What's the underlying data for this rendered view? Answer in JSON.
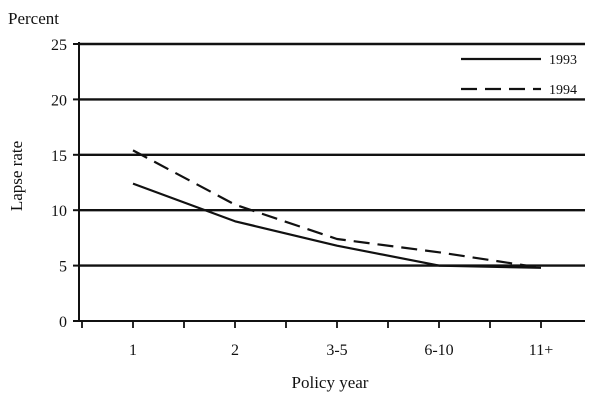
{
  "chart_data": {
    "type": "line",
    "unit_label": "Percent",
    "ylabel": "Lapse rate",
    "xlabel": "Policy year",
    "categories": [
      "1",
      "2",
      "3-5",
      "6-10",
      "11+"
    ],
    "ylim": [
      0,
      25
    ],
    "yticks": [
      0,
      5,
      10,
      15,
      20,
      25
    ],
    "grid": true,
    "legend": "top-right",
    "series": [
      {
        "name": "1993",
        "values": [
          12.4,
          9.0,
          6.8,
          5.0,
          4.8
        ],
        "color": "#111111",
        "style": "solid"
      },
      {
        "name": "1994",
        "values": [
          15.4,
          10.5,
          7.4,
          6.2,
          4.8
        ],
        "color": "#111111",
        "style": "dashed"
      }
    ]
  }
}
